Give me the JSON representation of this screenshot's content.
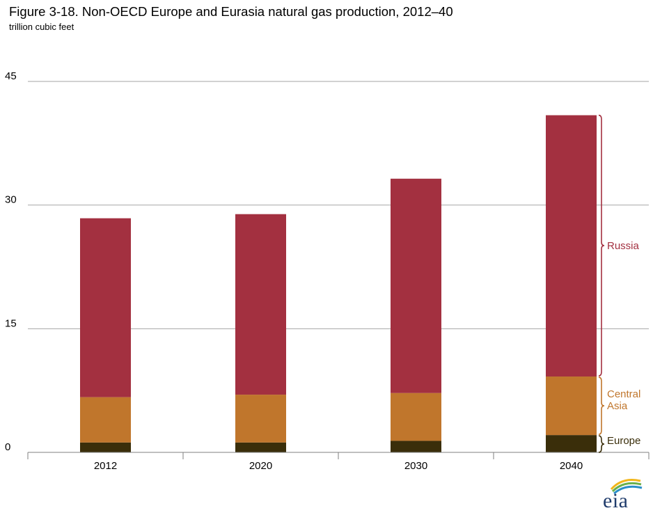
{
  "title": "Figure 3-18. Non-OECD Europe and Eurasia natural gas production, 2012–40",
  "subtitle": "trillion cubic feet",
  "logo_text": "eia",
  "colors": {
    "Europe": "#3a2e0a",
    "Central Asia": "#c0762c",
    "Russia": "#a33040",
    "grid": "#a6a6a6",
    "axis": "#7f7f7f"
  },
  "chart_data": {
    "type": "bar",
    "stacked": true,
    "categories": [
      "2012",
      "2020",
      "2030",
      "2040"
    ],
    "series": [
      {
        "name": "Europe",
        "values": [
          1.2,
          1.2,
          1.4,
          2.1
        ]
      },
      {
        "name": "Central Asia",
        "values": [
          5.5,
          5.8,
          5.8,
          7.1
        ]
      },
      {
        "name": "Russia",
        "values": [
          21.7,
          21.9,
          26.0,
          31.7
        ]
      }
    ],
    "ylim": [
      0,
      45
    ],
    "yticks": [
      "0",
      "15",
      "30",
      "45"
    ],
    "grid": true,
    "legend": "right",
    "legend_labels": [
      "Russia",
      "Central\nAsia",
      "Europe"
    ]
  }
}
